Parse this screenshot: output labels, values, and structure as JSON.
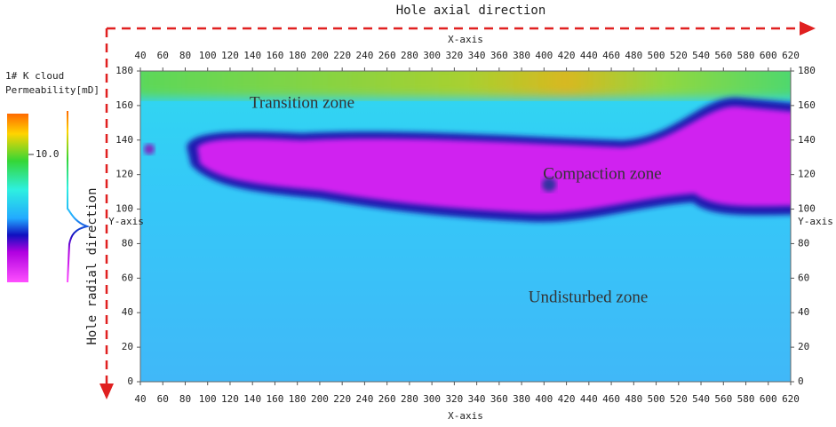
{
  "chart_data": {
    "type": "heatmap",
    "title": "Hole axial direction",
    "y_direction_label": "Hole radial direction",
    "xlabel": "X-axis",
    "ylabel": "Y-axis",
    "xlim": [
      40,
      620
    ],
    "xticks": [
      40,
      60,
      80,
      100,
      120,
      140,
      160,
      180,
      200,
      220,
      240,
      260,
      280,
      300,
      320,
      340,
      360,
      380,
      400,
      420,
      440,
      460,
      480,
      500,
      520,
      540,
      560,
      580,
      600,
      620
    ],
    "ylim": [
      0,
      180
    ],
    "yticks": [
      0,
      20,
      40,
      60,
      80,
      100,
      120,
      140,
      160,
      180
    ],
    "colorbar": {
      "title": "1# K cloud",
      "label": "Permeability[mD]",
      "ticks": [
        {
          "value": 10,
          "label": "10.0"
        }
      ]
    },
    "annotations": [
      "Transition zone",
      "Compaction zone",
      "Undisturbed zone"
    ]
  }
}
